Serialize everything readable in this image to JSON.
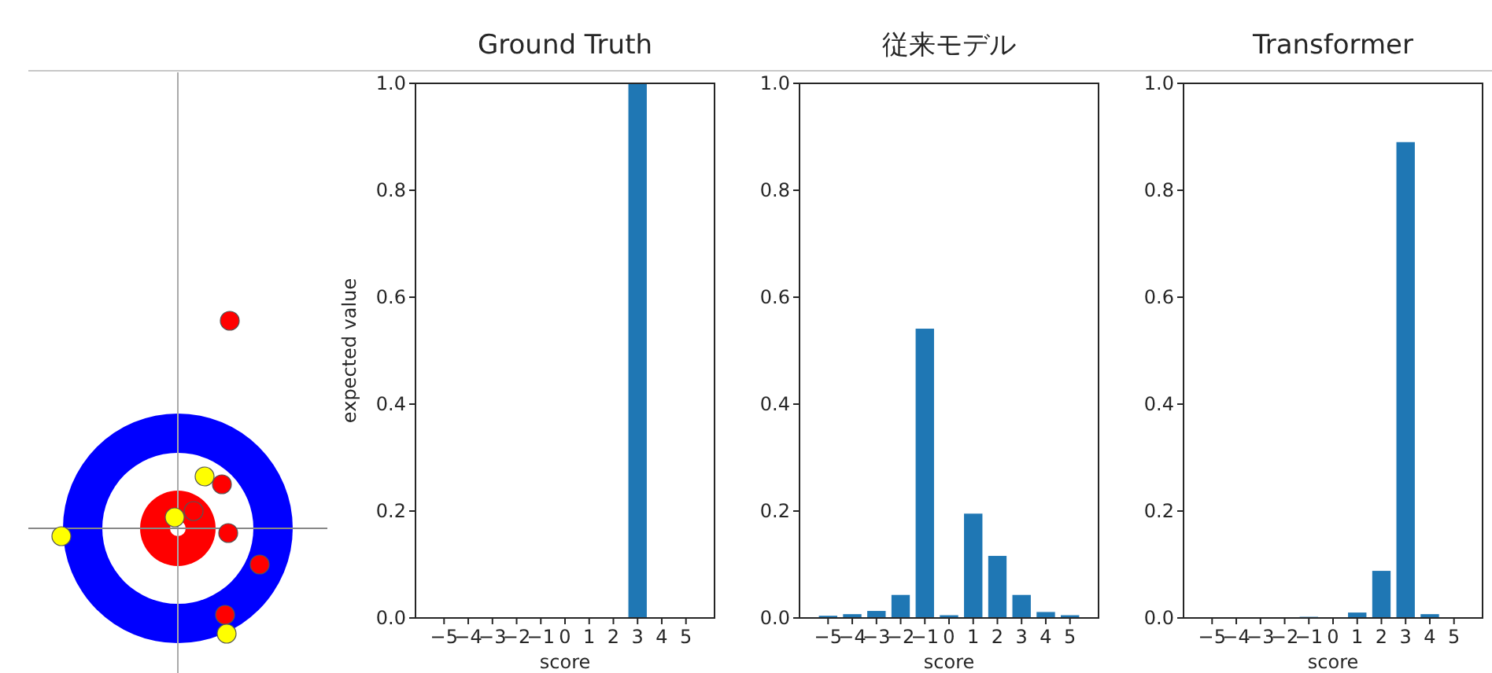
{
  "chart_data": [
    {
      "type": "bar",
      "title": "Ground Truth",
      "xlabel": "score",
      "ylabel": "expected value",
      "categories": [
        "−5",
        "−4",
        "−3",
        "−2",
        "−1",
        "0",
        "1",
        "2",
        "3",
        "4",
        "5"
      ],
      "series": [
        {
          "color": "#1f77b4",
          "values": [
            0,
            0,
            0,
            0,
            0,
            0,
            0,
            0,
            1.0,
            0,
            0
          ]
        }
      ],
      "ylim": [
        0,
        1
      ],
      "yticks": [
        {
          "value": 0,
          "label": "0.0"
        },
        {
          "value": 0.2,
          "label": "0.2"
        },
        {
          "value": 0.4,
          "label": "0.4"
        },
        {
          "value": 0.6,
          "label": "0.6"
        },
        {
          "value": 0.8,
          "label": "0.8"
        },
        {
          "value": 1,
          "label": "1.0"
        }
      ]
    },
    {
      "type": "bar",
      "title": "従来モデル",
      "xlabel": "score",
      "categories": [
        "−5",
        "−4",
        "−3",
        "−2",
        "−1",
        "0",
        "1",
        "2",
        "3",
        "4",
        "5"
      ],
      "series": [
        {
          "color": "#1f77b4",
          "values": [
            0.005,
            0.008,
            0.014,
            0.044,
            0.542,
            0.006,
            0.196,
            0.117,
            0.044,
            0.012,
            0.006
          ]
        }
      ],
      "ylim": [
        0,
        1
      ],
      "yticks": [
        {
          "value": 0,
          "label": "0.0"
        },
        {
          "value": 0.2,
          "label": "0.2"
        },
        {
          "value": 0.4,
          "label": "0.4"
        },
        {
          "value": 0.6,
          "label": "0.6"
        },
        {
          "value": 0.8,
          "label": "0.8"
        },
        {
          "value": 1,
          "label": "1.0"
        }
      ]
    },
    {
      "type": "bar",
      "title": "Transformer",
      "xlabel": "score",
      "categories": [
        "−5",
        "−4",
        "−3",
        "−2",
        "−1",
        "0",
        "1",
        "2",
        "3",
        "4",
        "5"
      ],
      "series": [
        {
          "color": "#1f77b4",
          "values": [
            0,
            0,
            0,
            0,
            0.003,
            0,
            0.011,
            0.089,
            0.891,
            0.008,
            0
          ]
        }
      ],
      "ylim": [
        0,
        1
      ],
      "yticks": [
        {
          "value": 0,
          "label": "0.0"
        },
        {
          "value": 0.2,
          "label": "0.2"
        },
        {
          "value": 0.4,
          "label": "0.4"
        },
        {
          "value": 0.6,
          "label": "0.6"
        },
        {
          "value": 0.8,
          "label": "0.8"
        },
        {
          "value": 1,
          "label": "1.0"
        }
      ]
    }
  ]
}
